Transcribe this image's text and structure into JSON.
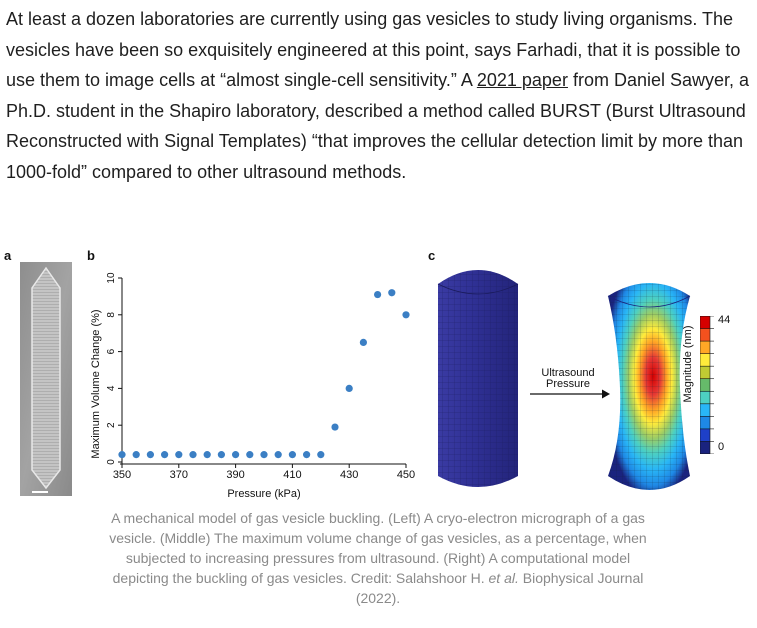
{
  "article": {
    "para_1": "At least a dozen laboratories are currently using gas vesicles to study living organisms. The vesicles have been so exquisitely engineered at this point, says Farhadi, that it is possible to use them to image cells at “almost single-cell sensitivity.” A ",
    "link_text": "2021 paper",
    "para_2": " from Daniel Sawyer, a Ph.D. student in the Shapiro laboratory, described a method called BURST (Burst Ultrasound Reconstructed with Signal Templates) “that improves the cellular detection limit by more than 1000-fold” compared to other ultrasound methods."
  },
  "figure": {
    "panel_a": "a",
    "panel_b": "b",
    "panel_c": "c",
    "arrow_label_line1": "Ultrasound",
    "arrow_label_line2": "Pressure",
    "colorbar_title": "Magnitude (nm)",
    "colorbar_max": "44",
    "colorbar_min": "0",
    "colormap": [
      "#1a237e",
      "#1e40c8",
      "#1e88e5",
      "#29b6f6",
      "#4dd0c1",
      "#66bb6a",
      "#c0ca33",
      "#ffeb3b",
      "#ffa726",
      "#f4511e",
      "#d50000"
    ],
    "vesicle_color": "#2e2f8f"
  },
  "chart_data": {
    "type": "scatter",
    "xlabel": "Pressure (kPa)",
    "ylabel": "Maximum Volume Change (%)",
    "xlim": [
      350,
      450
    ],
    "ylim": [
      0,
      10
    ],
    "xticks": [
      "350",
      "370",
      "390",
      "410",
      "430",
      "450"
    ],
    "yticks": [
      "0",
      "2",
      "4",
      "6",
      "8",
      "10"
    ],
    "color": "#3b7fc4",
    "x": [
      350,
      355,
      360,
      365,
      370,
      375,
      380,
      385,
      390,
      395,
      400,
      405,
      410,
      415,
      420,
      425,
      430,
      435,
      440,
      445,
      450
    ],
    "y": [
      0.4,
      0.4,
      0.4,
      0.4,
      0.4,
      0.4,
      0.4,
      0.4,
      0.4,
      0.4,
      0.4,
      0.4,
      0.4,
      0.4,
      0.4,
      1.9,
      4.0,
      6.5,
      9.1,
      9.2,
      8.0
    ]
  },
  "caption": {
    "text_1": "A mechanical model of gas vesicle buckling. (Left) A cryo-electron micrograph of a gas vesicle. (Middle) The maximum volume change of gas vesicles, as a percentage, when subjected to increasing pressures from ultrasound. (Right) A computational model depicting the buckling of gas vesicles. Credit: Salahshoor H. ",
    "et_al": "et al.",
    "text_2": " Biophysical Journal (2022)."
  }
}
